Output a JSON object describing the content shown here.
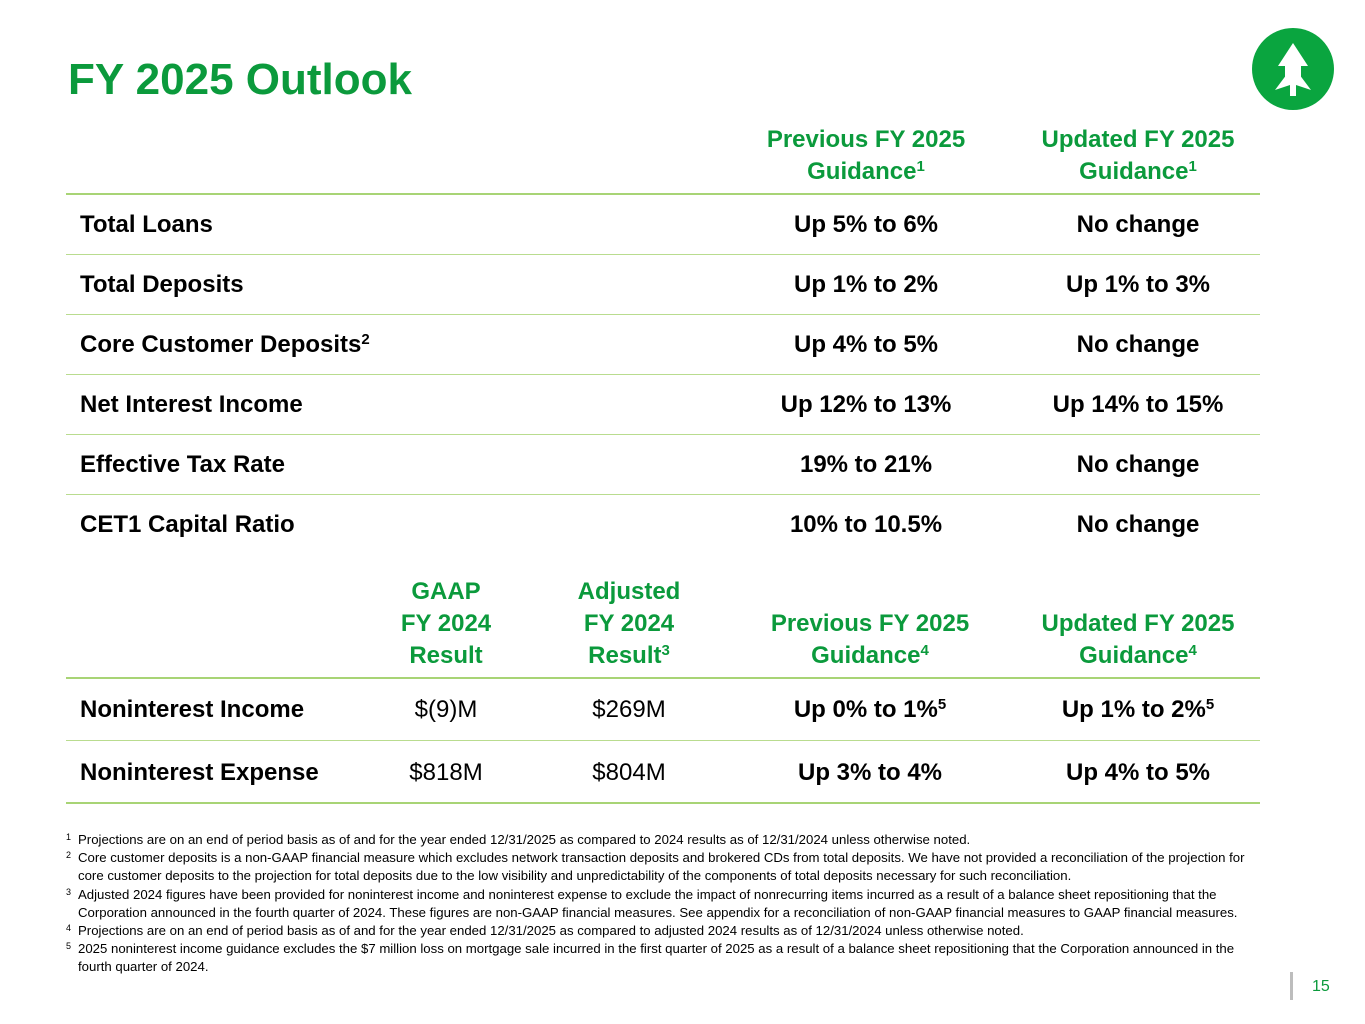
{
  "title": "FY 2025 Outlook",
  "page_number": "15",
  "logo": {
    "icon": "tree-icon",
    "color": "#0aa53f"
  },
  "colors": {
    "accent": "#0b9a3c",
    "rule": "#a8d475"
  },
  "table1": {
    "headers": [
      {
        "text": "Previous FY 2025",
        "text2": "Guidance",
        "sup": "1"
      },
      {
        "text": "Updated FY 2025",
        "text2": "Guidance",
        "sup": "1"
      }
    ],
    "rows": [
      {
        "label": "Total Loans",
        "sup": "",
        "previous": "Up 5% to 6%",
        "updated": "No change"
      },
      {
        "label": "Total Deposits",
        "sup": "",
        "previous": "Up 1% to 2%",
        "updated": "Up 1% to 3%"
      },
      {
        "label": "Core Customer Deposits",
        "sup": "2",
        "previous": "Up 4% to 5%",
        "updated": "No change"
      },
      {
        "label": "Net Interest Income",
        "sup": "",
        "previous": "Up 12% to 13%",
        "updated": "Up 14% to 15%"
      },
      {
        "label": "Effective Tax Rate",
        "sup": "",
        "previous": "19% to 21%",
        "updated": "No change"
      },
      {
        "label": "CET1 Capital Ratio",
        "sup": "",
        "previous": "10% to 10.5%",
        "updated": "No change"
      }
    ]
  },
  "table2": {
    "headers": [
      {
        "line1": "GAAP",
        "line2": "FY 2024",
        "line3": "Result",
        "sup": ""
      },
      {
        "line1": "Adjusted",
        "line2": "FY 2024",
        "line3": "Result",
        "sup": "3"
      },
      {
        "line1": "",
        "line2": "Previous FY 2025",
        "line3": "Guidance",
        "sup": "4"
      },
      {
        "line1": "",
        "line2": "Updated FY 2025",
        "line3": "Guidance",
        "sup": "4"
      }
    ],
    "rows": [
      {
        "label": "Noninterest Income",
        "gaap": "$(9)M",
        "adjusted": "$269M",
        "previous": "Up 0% to 1%",
        "previous_sup": "5",
        "updated": "Up 1% to 2%",
        "updated_sup": "5"
      },
      {
        "label": "Noninterest Expense",
        "gaap": "$818M",
        "adjusted": "$804M",
        "previous": "Up 3% to 4%",
        "previous_sup": "",
        "updated": "Up 4% to 5%",
        "updated_sup": ""
      }
    ]
  },
  "footnotes": [
    {
      "mark": "1",
      "text": "Projections are on an end of period basis as of and for the year ended 12/31/2025 as compared to 2024 results as of 12/31/2024 unless otherwise noted."
    },
    {
      "mark": "2",
      "text": "Core customer deposits is a non-GAAP financial measure which excludes network transaction deposits and brokered CDs from total deposits. We have not provided a reconciliation of the projection for core customer deposits to the projection for total deposits due to the low visibility and unpredictability of the components of total deposits necessary for such reconciliation."
    },
    {
      "mark": "3",
      "text": "Adjusted 2024 figures have been provided for noninterest income and noninterest expense to exclude the impact of nonrecurring items incurred as a result of a balance sheet repositioning that the Corporation announced in the fourth quarter of 2024. These figures are non-GAAP financial measures. See appendix for a reconciliation of non-GAAP financial measures to GAAP financial measures."
    },
    {
      "mark": "4",
      "text": "Projections are on an end of period basis as of and for the year ended 12/31/2025 as compared to adjusted 2024 results as of 12/31/2024 unless otherwise noted."
    },
    {
      "mark": "5",
      "text": "2025 noninterest income guidance excludes the $7 million loss on mortgage sale incurred in the first quarter of 2025 as a result of a balance sheet repositioning that the Corporation announced in the fourth quarter of 2024."
    }
  ]
}
